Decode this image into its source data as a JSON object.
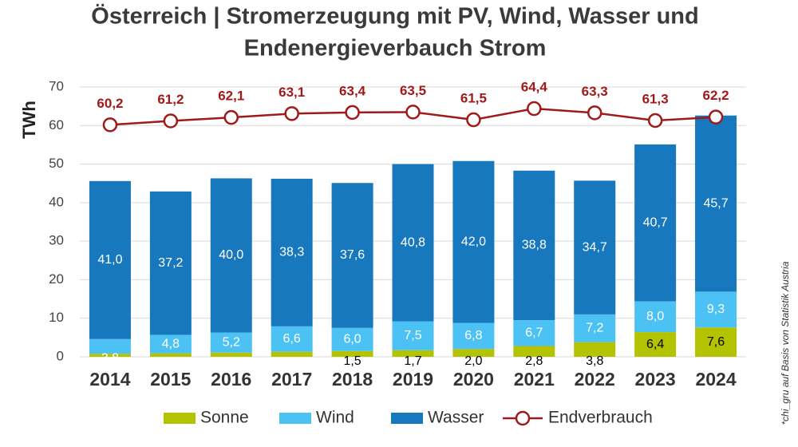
{
  "chart_data": {
    "type": "stacked_bar_line",
    "title": [
      "Österreich | Stromerzeugung mit PV, Wind, Wasser und",
      "Endenergieverbauch Strom"
    ],
    "y_label": "TWh",
    "note": "*chi_gru auf Basis von Statistik Austria",
    "categories": [
      "2014",
      "2015",
      "2016",
      "2017",
      "2018",
      "2019",
      "2020",
      "2021",
      "2022",
      "2023",
      "2024"
    ],
    "series": [
      {
        "name": "Sonne",
        "color": "#b4c300",
        "label_color": "#000000",
        "values": [
          0.8,
          0.9,
          1.1,
          1.3,
          1.5,
          1.7,
          2.0,
          2.8,
          3.8,
          6.4,
          7.6
        ],
        "value_labels": [
          null,
          null,
          null,
          null,
          "1,5",
          "1,7",
          "2,0",
          "2,8",
          "3,8",
          "6,4",
          "7,6"
        ]
      },
      {
        "name": "Wind",
        "color": "#4cc2f4",
        "label_color": "#ffffff",
        "values": [
          3.8,
          4.8,
          5.2,
          6.6,
          6.0,
          7.5,
          6.8,
          6.7,
          7.2,
          8.0,
          9.3
        ],
        "value_labels": [
          "3,8",
          "4,8",
          "5,2",
          "6,6",
          "6,0",
          "7,5",
          "6,8",
          "6,7",
          "7,2",
          "8,0",
          "9,3"
        ]
      },
      {
        "name": "Wasser",
        "color": "#1878be",
        "label_color": "#ffffff",
        "values": [
          41.0,
          37.2,
          40.0,
          38.3,
          37.6,
          40.8,
          42.0,
          38.8,
          34.7,
          40.7,
          45.7
        ],
        "value_labels": [
          "41,0",
          "37,2",
          "40,0",
          "38,3",
          "37,6",
          "40,8",
          "42,0",
          "38,8",
          "34,7",
          "40,7",
          "45,7"
        ]
      },
      {
        "name": "Endverbrauch",
        "type": "line",
        "color": "#a01a1a",
        "label_color": "#a01a1a",
        "values": [
          60.2,
          61.2,
          62.1,
          63.1,
          63.4,
          63.5,
          61.5,
          64.4,
          63.3,
          61.3,
          62.2
        ],
        "value_labels": [
          "60,2",
          "61,2",
          "62,1",
          "63,1",
          "63,4",
          "63,5",
          "61,5",
          "64,4",
          "63,3",
          "61,3",
          "62,2"
        ]
      }
    ],
    "ylim": [
      0,
      70
    ],
    "yticks": [
      0,
      10,
      20,
      30,
      40,
      50,
      60,
      70
    ],
    "grid": true
  }
}
